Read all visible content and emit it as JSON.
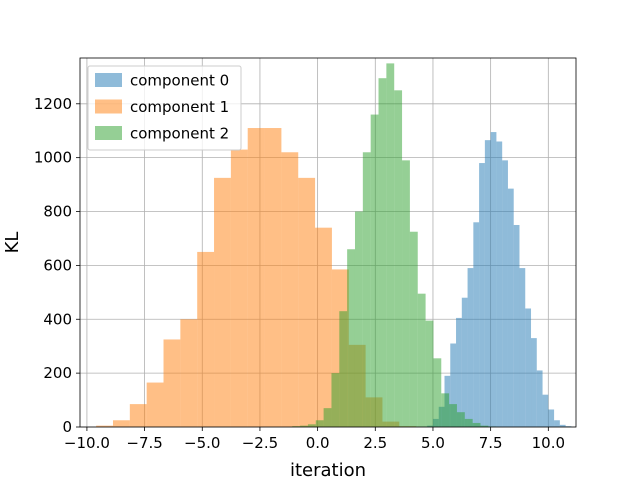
{
  "chart_data": {
    "type": "histogram",
    "xlabel": "iteration",
    "ylabel": "KL",
    "xlim": [
      -10.3,
      11.2
    ],
    "ylim": [
      0,
      1370
    ],
    "grid": true,
    "legend_position": "top-left",
    "xticks": [
      -10.0,
      -7.5,
      -5.0,
      -2.5,
      0.0,
      2.5,
      5.0,
      7.5,
      10.0
    ],
    "xtick_labels": [
      "−10.0",
      "−7.5",
      "−5.0",
      "−2.5",
      "0.0",
      "2.5",
      "5.0",
      "7.5",
      "10.0"
    ],
    "yticks": [
      0,
      200,
      400,
      600,
      800,
      1000,
      1200
    ],
    "ytick_labels": [
      "0",
      "200",
      "400",
      "600",
      "800",
      "1000",
      "1200"
    ],
    "series": [
      {
        "name": "component 0",
        "color": "#1f77b4",
        "bin_start": 4.75,
        "bin_width": 0.25,
        "counts": [
          5,
          30,
          75,
          190,
          310,
          405,
          480,
          590,
          760,
          980,
          1065,
          1095,
          1060,
          990,
          885,
          750,
          590,
          440,
          330,
          210,
          120,
          65,
          25,
          8,
          3
        ]
      },
      {
        "name": "component 1",
        "color": "#ff7f0e",
        "bin_start": -9.6,
        "bin_width": 0.73,
        "counts": [
          5,
          25,
          85,
          165,
          325,
          400,
          650,
          925,
          1030,
          1110,
          1110,
          1020,
          925,
          740,
          585,
          305,
          110,
          20,
          3
        ]
      },
      {
        "name": "component 2",
        "color": "#2ca02c",
        "bin_start": -1.1,
        "bin_width": 0.34,
        "counts": [
          3,
          5,
          10,
          25,
          70,
          200,
          430,
          660,
          800,
          1020,
          1160,
          1295,
          1350,
          1250,
          990,
          725,
          495,
          395,
          255,
          125,
          85,
          55,
          30,
          15,
          5,
          2
        ]
      }
    ]
  }
}
